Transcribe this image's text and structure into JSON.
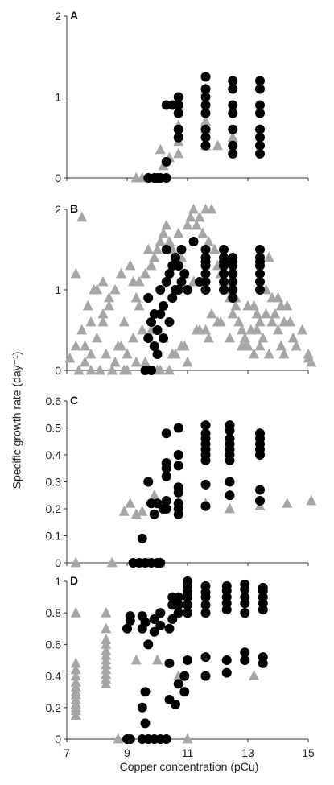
{
  "figure": {
    "ylabel": "Specific growth rate (day⁻¹)",
    "xlabel": "Copper concentration (pCu)"
  },
  "colors": {
    "circle": "#000000",
    "triangle": "#a6a6a6",
    "axis": "#333333"
  },
  "chart_data": [
    {
      "panel": "A",
      "type": "scatter",
      "xlim": [
        7,
        15
      ],
      "ylim": [
        0,
        2
      ],
      "yticks": [
        "0",
        "1",
        "2"
      ],
      "series": [
        {
          "marker": "circle",
          "x": [
            9.7,
            9.9,
            10.0,
            10.1,
            10.3,
            10.3,
            10.3,
            10.5,
            10.7,
            10.7,
            10.7,
            10.7,
            10.7,
            11.6,
            11.6,
            11.6,
            11.6,
            11.6,
            11.6,
            11.6,
            11.6,
            12.5,
            12.5,
            12.5,
            12.5,
            12.5,
            12.5,
            12.5,
            13.4,
            13.4,
            13.4,
            13.4,
            13.4,
            13.4,
            13.4,
            13.4
          ],
          "y": [
            0,
            0,
            0,
            0,
            0,
            0.2,
            0.9,
            0.9,
            0.5,
            0.6,
            0.8,
            0.9,
            1.0,
            0.4,
            0.5,
            0.6,
            0.8,
            0.9,
            1.0,
            1.1,
            1.25,
            0.3,
            0.4,
            0.6,
            0.8,
            0.9,
            1.1,
            1.2,
            0.3,
            0.4,
            0.5,
            0.6,
            0.8,
            0.9,
            1.1,
            1.2
          ]
        },
        {
          "marker": "triangle",
          "x": [
            9.3,
            9.5,
            9.7,
            9.9,
            10.1,
            10.2,
            10.4,
            10.1,
            10.7,
            10.7,
            10.7,
            10.7,
            11.6,
            11.6,
            11.6,
            11.6,
            12.0,
            12.5
          ],
          "y": [
            0,
            0,
            0,
            0,
            0,
            0.15,
            0.25,
            0.35,
            0.3,
            0.45,
            0.55,
            0.65,
            0.4,
            0.6,
            0.7,
            1.1,
            0.4,
            0.5
          ]
        }
      ]
    },
    {
      "panel": "B",
      "type": "scatter",
      "xlim": [
        7,
        15
      ],
      "ylim": [
        0,
        2
      ],
      "yticks": [
        "0",
        "1",
        "2"
      ],
      "series": [
        {
          "marker": "circle",
          "x": [
            9.6,
            9.7,
            9.7,
            9.8,
            9.8,
            9.9,
            9.9,
            10.0,
            10.0,
            10.1,
            10.1,
            10.2,
            10.2,
            10.3,
            10.3,
            10.4,
            10.4,
            10.5,
            10.5,
            10.6,
            10.6,
            10.7,
            10.7,
            10.8,
            10.8,
            10.9,
            11.0,
            11.2,
            11.4,
            11.6,
            11.6,
            11.6,
            11.6,
            11.6,
            11.6,
            11.6,
            12.2,
            12.2,
            12.2,
            12.2,
            12.2,
            12.2,
            12.2,
            12.5,
            12.5,
            12.5,
            12.5,
            12.5,
            12.5,
            12.5,
            13.4,
            13.4,
            13.4,
            13.4,
            13.4,
            13.4,
            13.4
          ],
          "y": [
            0,
            0.4,
            0.9,
            0,
            0.6,
            0.3,
            0.7,
            0.2,
            0.5,
            0.7,
            1.0,
            0.4,
            0.8,
            1.1,
            1.5,
            0.6,
            1.2,
            0.9,
            1.3,
            1.0,
            1.4,
            1.0,
            1.3,
            1.1,
            1.5,
            1.2,
            1.0,
            1.6,
            1.1,
            1.0,
            1.1,
            1.2,
            1.3,
            1.35,
            1.4,
            1.5,
            1.0,
            1.1,
            1.2,
            1.3,
            1.35,
            1.4,
            1.5,
            0.9,
            1.0,
            1.1,
            1.2,
            1.3,
            1.35,
            1.4,
            1.0,
            1.1,
            1.2,
            1.3,
            1.35,
            1.4,
            1.5
          ]
        },
        {
          "marker": "triangle",
          "x": [
            7.1,
            7.3,
            7.3,
            7.4,
            7.5,
            7.5,
            7.6,
            7.7,
            7.8,
            7.9,
            8.0,
            8.1,
            8.2,
            8.2,
            8.3,
            8.4,
            8.5,
            8.6,
            8.7,
            8.8,
            8.9,
            9.0,
            9.1,
            9.2,
            9.3,
            9.4,
            9.5,
            9.6,
            9.7,
            9.8,
            9.9,
            10.0,
            10.1,
            10.2,
            10.3,
            10.4,
            10.5,
            10.6,
            10.7,
            10.8,
            10.9,
            11.0,
            11.1,
            11.2,
            11.3,
            11.4,
            11.5,
            11.6,
            11.7,
            11.8,
            11.9,
            12.0,
            12.1,
            12.2,
            12.3,
            12.4,
            12.5,
            12.6,
            12.7,
            12.8,
            12.9,
            13.0,
            13.1,
            13.2,
            13.3,
            13.4,
            13.5,
            13.6,
            13.7,
            13.8,
            13.9,
            14.0,
            14.1,
            14.2,
            14.3,
            14.5,
            14.8,
            15.0,
            15.1,
            7.8,
            8.0,
            8.4,
            8.8,
            9.2,
            9.6,
            10.0,
            10.4,
            10.8,
            11.2,
            11.6,
            12.0,
            12.4,
            12.8,
            13.2,
            13.6,
            14.0,
            14.4,
            7.6,
            8.2,
            8.6,
            9.0,
            9.4,
            9.8,
            10.2,
            10.6,
            11.0,
            11.4,
            11.8,
            12.2,
            12.6,
            13.0,
            13.4,
            13.8,
            14.2,
            14.6,
            7.4,
            7.8,
            8.1,
            8.5,
            8.9,
            9.3,
            9.7,
            10.1,
            10.5,
            10.9,
            11.3,
            11.7,
            12.1,
            12.5,
            12.9,
            13.3,
            13.7,
            14.1,
            15.0
          ],
          "y": [
            0.15,
            1.2,
            0.3,
            0,
            1.9,
            0.5,
            0.1,
            0.8,
            0.2,
            1.0,
            0.4,
            0,
            1.1,
            0.6,
            0.2,
            0.9,
            0,
            1.0,
            0.3,
            1.2,
            0.6,
            0,
            1.3,
            0.4,
            0.9,
            1.1,
            0.5,
            1.2,
            1.5,
            1.3,
            1.4,
            1.5,
            1.6,
            1.7,
            1.8,
            1.6,
            1.5,
            1.3,
            1.7,
            1.4,
            1.2,
            1.8,
            1.9,
            2.0,
            1.8,
            1.9,
            1.7,
            2.0,
            1.6,
            2.0,
            1.5,
            1.3,
            1.2,
            1.1,
            1.0,
            0.9,
            0.7,
            0.8,
            0.6,
            0.5,
            0.4,
            0.3,
            0.5,
            0.8,
            0.7,
            0.6,
            0.4,
            1.0,
            1.4,
            0.9,
            0.7,
            0.5,
            0.3,
            0.6,
            0.8,
            0.4,
            0.5,
            0.2,
            0.1,
            0.6,
            1.0,
            0.8,
            0.3,
            1.1,
            0.1,
            0,
            0,
            0.3,
            1.1,
            0.5,
            0.6,
            0.4,
            0.3,
            0.2,
            0.7,
            0.9,
            0.6,
            0.3,
            0.7,
            0.1,
            0.2,
            0.8,
            0.5,
            0.4,
            0.2,
            0.1,
            0.5,
            0.7,
            1.4,
            0.9,
            0.8,
            0.3,
            0.6,
            0.2,
            0.3,
            0,
            0,
            0,
            0,
            0,
            0.1,
            0,
            0,
            0.2,
            0.3,
            0.5,
            0.4,
            0.6,
            0.9,
            0.3,
            0.5,
            0.2,
            0.8,
            0.15
          ]
        }
      ]
    },
    {
      "panel": "C",
      "type": "scatter",
      "xlim": [
        7,
        15
      ],
      "ylim": [
        0,
        0.6
      ],
      "yticks": [
        "0",
        "0.1",
        "0.2",
        "0.3",
        "0.4",
        "0.5",
        "0.6"
      ],
      "series": [
        {
          "marker": "circle",
          "x": [
            9.2,
            9.4,
            9.5,
            9.6,
            9.7,
            9.8,
            9.8,
            9.9,
            10.0,
            10.0,
            10.1,
            10.2,
            10.3,
            10.3,
            10.3,
            10.3,
            10.3,
            10.3,
            10.7,
            10.7,
            10.7,
            10.7,
            10.7,
            10.7,
            10.7,
            10.7,
            11.6,
            11.6,
            11.6,
            11.6,
            11.6,
            11.6,
            11.6,
            11.6,
            11.6,
            12.4,
            12.4,
            12.4,
            12.4,
            12.4,
            12.4,
            12.4,
            12.4,
            12.4,
            13.4,
            13.4,
            13.4,
            13.4,
            13.4,
            13.4,
            13.4
          ],
          "y": [
            0,
            0,
            0.09,
            0,
            0.3,
            0,
            0.22,
            0.18,
            0,
            0.22,
            0,
            0.2,
            0.2,
            0.23,
            0.32,
            0.35,
            0.37,
            0.48,
            0.18,
            0.2,
            0.22,
            0.26,
            0.28,
            0.36,
            0.4,
            0.5,
            0.21,
            0.29,
            0.38,
            0.4,
            0.42,
            0.44,
            0.46,
            0.48,
            0.51,
            0.25,
            0.3,
            0.38,
            0.4,
            0.42,
            0.44,
            0.46,
            0.49,
            0.51,
            0.23,
            0.27,
            0.4,
            0.42,
            0.44,
            0.46,
            0.48
          ]
        },
        {
          "marker": "triangle",
          "x": [
            7.3,
            8.5,
            8.9,
            9.1,
            9.3,
            9.5,
            9.7,
            9.9,
            10.1,
            10.3,
            10.7,
            11.6,
            12.4,
            13.4,
            14.3,
            15.1
          ],
          "y": [
            0,
            0,
            0.19,
            0.22,
            0.18,
            0.19,
            0,
            0.25,
            0,
            0.21,
            0.21,
            0.22,
            0.2,
            0.21,
            0.22,
            0.23
          ]
        }
      ]
    },
    {
      "panel": "D",
      "type": "scatter",
      "xlim": [
        7,
        15
      ],
      "ylim": [
        0,
        1
      ],
      "yticks": [
        "0",
        "0.2",
        "0.4",
        "0.6",
        "0.8",
        "1"
      ],
      "series": [
        {
          "marker": "circle",
          "x": [
            9.0,
            9.0,
            9.1,
            9.1,
            9.1,
            9.5,
            9.5,
            9.5,
            9.5,
            9.6,
            9.6,
            9.6,
            9.7,
            9.7,
            9.9,
            9.9,
            9.9,
            10.1,
            10.1,
            10.1,
            10.1,
            10.3,
            10.4,
            10.4,
            10.4,
            10.5,
            10.5,
            10.5,
            10.6,
            10.7,
            10.7,
            10.7,
            10.7,
            10.9,
            10.9,
            11.0,
            11.0,
            11.0,
            11.0,
            11.0,
            11.0,
            11.0,
            11.6,
            11.6,
            11.6,
            11.6,
            11.6,
            11.6,
            11.6,
            12.3,
            12.3,
            12.3,
            12.3,
            12.3,
            12.3,
            12.3,
            12.9,
            12.9,
            12.9,
            12.9,
            12.9,
            12.9,
            12.9,
            13.5,
            13.5,
            13.5,
            13.5,
            13.5,
            13.5,
            13.5
          ],
          "y": [
            0,
            0.7,
            0.75,
            0.78,
            0,
            0,
            0.2,
            0.7,
            0.78,
            0.1,
            0.3,
            0.74,
            0,
            0.6,
            0,
            0.68,
            0.76,
            0.72,
            0.8,
            0,
            0.8,
            0,
            0.25,
            0.48,
            0.7,
            0.76,
            0.85,
            0.9,
            0.22,
            0.35,
            0.8,
            0.85,
            0.9,
            0.3,
            0.4,
            0.5,
            0.8,
            0.85,
            0.9,
            0.93,
            0.97,
            1.0,
            0.4,
            0.52,
            0.8,
            0.85,
            0.9,
            0.93,
            0.97,
            0.42,
            0.5,
            0.82,
            0.86,
            0.9,
            0.94,
            0.97,
            0.5,
            0.55,
            0.8,
            0.86,
            0.9,
            0.95,
            0.98,
            0.48,
            0.52,
            0.82,
            0.86,
            0.9,
            0.94,
            0.96
          ]
        },
        {
          "marker": "triangle",
          "x": [
            7.3,
            7.3,
            7.3,
            7.3,
            7.3,
            7.3,
            7.3,
            7.3,
            7.3,
            7.3,
            7.3,
            7.3,
            7.3,
            7.3,
            7.3,
            8.3,
            8.3,
            8.3,
            8.3,
            8.3,
            8.3,
            8.3,
            8.3,
            8.3,
            8.3,
            8.3,
            8.3,
            8.7,
            9.3,
            10.0,
            10.7,
            11.0,
            13.2
          ],
          "y": [
            0.15,
            0.18,
            0.2,
            0.22,
            0.25,
            0.28,
            0.3,
            0.33,
            0.36,
            0.4,
            0.44,
            0.48,
            0.8,
            0.15,
            0.22,
            0.35,
            0.38,
            0.41,
            0.44,
            0.47,
            0.5,
            0.53,
            0.56,
            0.6,
            0.63,
            0.8,
            0.7,
            0,
            0.5,
            0.5,
            0.4,
            0,
            0.4
          ]
        }
      ]
    }
  ],
  "x_ticks": [
    "7",
    "9",
    "11",
    "13",
    "15"
  ]
}
